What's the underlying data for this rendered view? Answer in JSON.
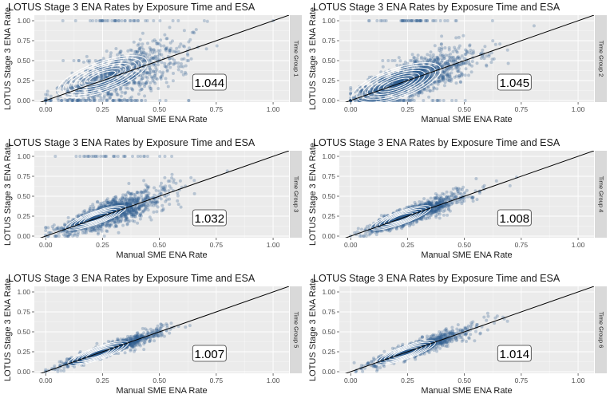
{
  "figure": {
    "colors": {
      "panel_bg": "#ebebeb",
      "grid_major": "#ffffff",
      "points": "#2f5f8f",
      "strip_bg": "#d9d9d9",
      "contour": "#ffffff",
      "identity_line": "#000000"
    }
  },
  "chart_data": [
    {
      "type": "scatter",
      "title": "LOTUS Stage 3 ENA Rates by Exposure Time and ESA",
      "xlabel": "Manual SME ENA Rate",
      "ylabel": "LOTUS Stage 3 ENA Rate",
      "facet_label": "Time Group 1",
      "xlim": [
        -0.05,
        1.07
      ],
      "ylim": [
        -0.02,
        1.07
      ],
      "xticks": [
        "0.00",
        "0.25",
        "0.50",
        "0.75",
        "1.00"
      ],
      "yticks": [
        "0.00",
        "0.25",
        "0.50",
        "0.75",
        "1.00"
      ],
      "ratio_label": "1.044",
      "reference_line": {
        "slope": 1,
        "intercept": 0
      },
      "density_center": [
        0.25,
        0.3
      ],
      "spread": [
        0.17,
        0.2
      ],
      "noise": 0.15,
      "n_points": 1100
    },
    {
      "type": "scatter",
      "title": "LOTUS Stage 3 ENA Rates by Exposure Time and ESA",
      "xlabel": "Manual SME ENA Rate",
      "ylabel": "LOTUS Stage 3 ENA Rate",
      "facet_label": "Time Group 2",
      "xlim": [
        -0.05,
        1.07
      ],
      "ylim": [
        -0.02,
        1.07
      ],
      "xticks": [
        "0.00",
        "0.25",
        "0.50",
        "0.75",
        "1.00"
      ],
      "yticks": [
        "0.00",
        "0.25",
        "0.50",
        "0.75",
        "1.00"
      ],
      "ratio_label": "1.045",
      "reference_line": {
        "slope": 1,
        "intercept": 0
      },
      "density_center": [
        0.2,
        0.21
      ],
      "spread": [
        0.15,
        0.15
      ],
      "noise": 0.12,
      "n_points": 1600
    },
    {
      "type": "scatter",
      "title": "LOTUS Stage 3 ENA Rates by Exposure Time and ESA",
      "xlabel": "Manual SME ENA Rate",
      "ylabel": "LOTUS Stage 3 ENA Rate",
      "facet_label": "Time Group 3",
      "xlim": [
        -0.05,
        1.07
      ],
      "ylim": [
        -0.02,
        1.07
      ],
      "xticks": [
        "0.00",
        "0.25",
        "0.50",
        "0.75",
        "1.00"
      ],
      "yticks": [
        "0.00",
        "0.25",
        "0.50",
        "0.75",
        "1.00"
      ],
      "ratio_label": "1.032",
      "reference_line": {
        "slope": 1,
        "intercept": 0
      },
      "density_center": [
        0.22,
        0.23
      ],
      "spread": [
        0.14,
        0.14
      ],
      "noise": 0.09,
      "n_points": 1400
    },
    {
      "type": "scatter",
      "title": "LOTUS Stage 3 ENA Rates by Exposure Time and ESA",
      "xlabel": "Manual SME ENA Rate",
      "ylabel": "LOTUS Stage 3 ENA Rate",
      "facet_label": "Time Group 4",
      "xlim": [
        -0.05,
        1.07
      ],
      "ylim": [
        -0.02,
        1.07
      ],
      "xticks": [
        "0.00",
        "0.25",
        "0.50",
        "0.75",
        "1.00"
      ],
      "yticks": [
        "0.00",
        "0.25",
        "0.50",
        "0.75",
        "1.00"
      ],
      "ratio_label": "1.008",
      "reference_line": {
        "slope": 1,
        "intercept": 0
      },
      "density_center": [
        0.22,
        0.23
      ],
      "spread": [
        0.13,
        0.13
      ],
      "noise": 0.06,
      "n_points": 1200
    },
    {
      "type": "scatter",
      "title": "LOTUS Stage 3 ENA Rates by Exposure Time and ESA",
      "xlabel": "Manual SME ENA Rate",
      "ylabel": "LOTUS Stage 3 ENA Rate",
      "facet_label": "Time Group 5",
      "xlim": [
        -0.05,
        1.07
      ],
      "ylim": [
        -0.02,
        1.07
      ],
      "xticks": [
        "0.00",
        "0.25",
        "0.50",
        "0.75",
        "1.00"
      ],
      "yticks": [
        "0.00",
        "0.25",
        "0.50",
        "0.75",
        "1.00"
      ],
      "ratio_label": "1.007",
      "reference_line": {
        "slope": 1,
        "intercept": 0
      },
      "density_center": [
        0.23,
        0.23
      ],
      "spread": [
        0.13,
        0.13
      ],
      "noise": 0.04,
      "n_points": 1100
    },
    {
      "type": "scatter",
      "title": "LOTUS Stage 3 ENA Rates by Exposure Time and ESA",
      "xlabel": "Manual SME ENA Rate",
      "ylabel": "LOTUS Stage 3 ENA Rate",
      "facet_label": "Time Group 6",
      "xlim": [
        -0.05,
        1.07
      ],
      "ylim": [
        -0.02,
        1.07
      ],
      "xticks": [
        "0.00",
        "0.25",
        "0.50",
        "0.75",
        "1.00"
      ],
      "yticks": [
        "0.00",
        "0.25",
        "0.50",
        "0.75",
        "1.00"
      ],
      "ratio_label": "1.014",
      "reference_line": {
        "slope": 1,
        "intercept": 0
      },
      "density_center": [
        0.24,
        0.24
      ],
      "spread": [
        0.13,
        0.13
      ],
      "noise": 0.05,
      "n_points": 1000
    }
  ]
}
